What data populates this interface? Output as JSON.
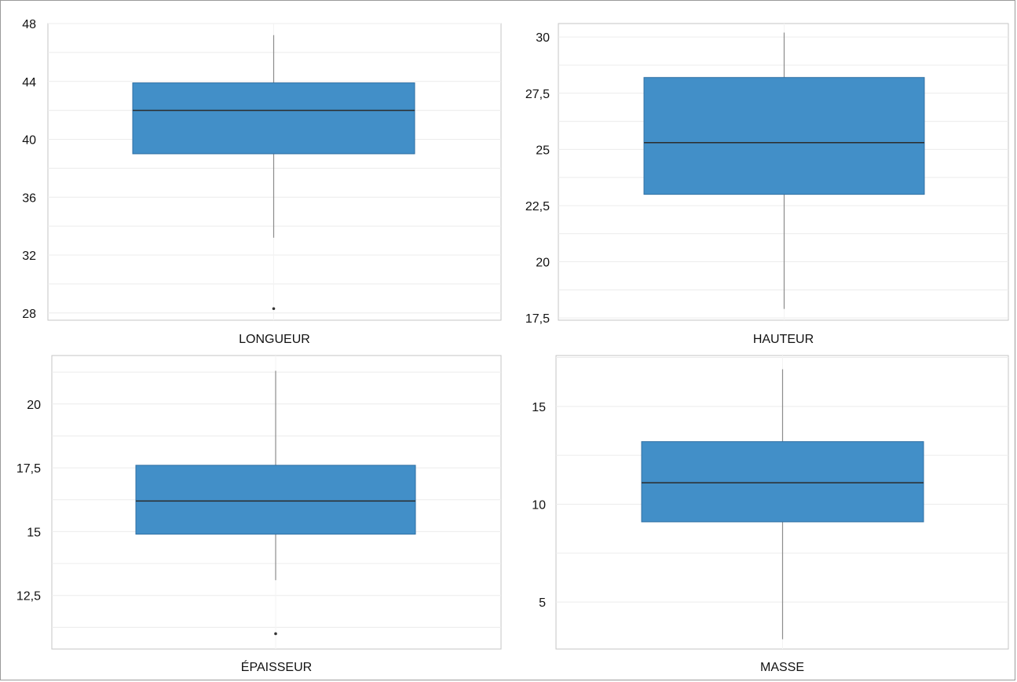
{
  "colors": {
    "box_fill": "#428fc8",
    "box_stroke": "#2f6fa3",
    "median": "#2b2b2b",
    "whisker": "#8c8c8c",
    "grid": "#ececec",
    "panel_border": "#c6c6c6",
    "outlier": "#333333"
  },
  "chart_data": [
    {
      "type": "box",
      "xlabel": "LONGUEUR",
      "ylim": [
        27.5,
        48
      ],
      "ticks": [
        28,
        32,
        36,
        40,
        44,
        48
      ],
      "tick_labels": [
        "28",
        "32",
        "36",
        "40",
        "44",
        "48"
      ],
      "grid_step": 2,
      "whisker_low": 33.2,
      "q1": 39,
      "median": 42,
      "q3": 43.9,
      "whisker_high": 47.2,
      "outliers": [
        28.3
      ]
    },
    {
      "type": "box",
      "xlabel": "HAUTEUR",
      "ylim": [
        17.4,
        30.6
      ],
      "ticks": [
        17.5,
        20,
        22.5,
        25,
        27.5,
        30
      ],
      "tick_labels": [
        "17,5",
        "20",
        "22,5",
        "25",
        "27,5",
        "30"
      ],
      "grid_step": 1.25,
      "whisker_low": 17.9,
      "q1": 23,
      "median": 25.3,
      "q3": 28.2,
      "whisker_high": 30.2,
      "outliers": []
    },
    {
      "type": "box",
      "xlabel": "ÉPAISSEUR",
      "ylim": [
        10.4,
        21.9
      ],
      "ticks": [
        12.5,
        15,
        17.5,
        20
      ],
      "tick_labels": [
        "12,5",
        "15",
        "17,5",
        "20"
      ],
      "grid_step": 1.25,
      "whisker_low": 13.1,
      "q1": 14.9,
      "median": 16.2,
      "q3": 17.6,
      "whisker_high": 21.3,
      "outliers": [
        11
      ]
    },
    {
      "type": "box",
      "xlabel": "MASSE",
      "ylim": [
        2.6,
        17.6
      ],
      "ticks": [
        5,
        10,
        15
      ],
      "tick_labels": [
        "5",
        "10",
        "15"
      ],
      "grid_step": 2.5,
      "whisker_low": 3.1,
      "q1": 9.1,
      "median": 11.1,
      "q3": 13.2,
      "whisker_high": 16.9,
      "outliers": []
    }
  ]
}
